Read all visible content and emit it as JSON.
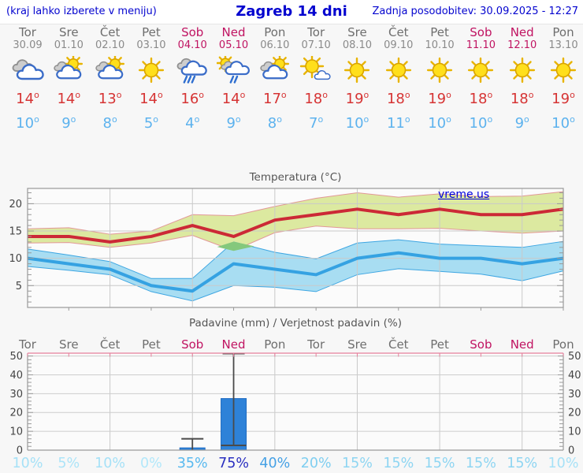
{
  "header": {
    "hint": "(kraj lahko izberete v meniju)",
    "title": "Zagreb 14 dni",
    "updated": "Zadnja posodobitev: 30.09.2025 - 12:27"
  },
  "colors": {
    "weekday": "#6e6e6e",
    "weekend": "#c01462",
    "date": "#8a8a8a",
    "high_temp": "#d63434",
    "low_temp": "#5cb2ee",
    "header_blue": "#0404cf",
    "bar_blue": "#2e82d8",
    "red_line": "#cc2936",
    "blue_line": "#35a2e2",
    "green_band": "#dce9a0",
    "blue_band": "#a8ddf2",
    "overlap_green": "#84c87c"
  },
  "forecast": {
    "degree_symbol": "o",
    "days": [
      {
        "name": "Tor",
        "date": "30.09",
        "weekend": false,
        "icon": "cloudy",
        "high": 14,
        "low": 10,
        "prob": 10,
        "prob_label": "10%",
        "prob_color": "#a6e1f7"
      },
      {
        "name": "Sre",
        "date": "01.10",
        "weekend": false,
        "icon": "partly-cloudy",
        "high": 14,
        "low": 9,
        "prob": 5,
        "prob_label": "5%",
        "prob_color": "#ace4f8"
      },
      {
        "name": "Čet",
        "date": "02.10",
        "weekend": false,
        "icon": "partly-cloudy",
        "high": 13,
        "low": 8,
        "prob": 10,
        "prob_label": "10%",
        "prob_color": "#a6e1f7"
      },
      {
        "name": "Pet",
        "date": "03.10",
        "weekend": false,
        "icon": "sunny",
        "high": 14,
        "low": 5,
        "prob": 0,
        "prob_label": "0%",
        "prob_color": "#b2e7fa"
      },
      {
        "name": "Sob",
        "date": "04.10",
        "weekend": true,
        "icon": "rain",
        "high": 16,
        "low": 4,
        "prob": 35,
        "prob_label": "35%",
        "prob_color": "#58b9ef"
      },
      {
        "name": "Ned",
        "date": "05.10",
        "weekend": true,
        "icon": "sun-rain",
        "high": 14,
        "low": 9,
        "prob": 75,
        "prob_label": "75%",
        "prob_color": "#2a2fc0"
      },
      {
        "name": "Pon",
        "date": "06.10",
        "weekend": false,
        "icon": "partly-cloudy",
        "high": 17,
        "low": 8,
        "prob": 40,
        "prob_label": "40%",
        "prob_color": "#46a1e5"
      },
      {
        "name": "Tor",
        "date": "07.10",
        "weekend": false,
        "icon": "mostly-sunny",
        "high": 18,
        "low": 7,
        "prob": 20,
        "prob_label": "20%",
        "prob_color": "#7fcef0"
      },
      {
        "name": "Sre",
        "date": "08.10",
        "weekend": false,
        "icon": "sunny",
        "high": 19,
        "low": 10,
        "prob": 15,
        "prob_label": "15%",
        "prob_color": "#8ed5f2"
      },
      {
        "name": "Čet",
        "date": "09.10",
        "weekend": false,
        "icon": "sunny",
        "high": 18,
        "low": 11,
        "prob": 15,
        "prob_label": "15%",
        "prob_color": "#8ed5f2"
      },
      {
        "name": "Pet",
        "date": "10.10",
        "weekend": false,
        "icon": "sunny",
        "high": 19,
        "low": 10,
        "prob": 15,
        "prob_label": "15%",
        "prob_color": "#8ed5f2"
      },
      {
        "name": "Sob",
        "date": "11.10",
        "weekend": true,
        "icon": "sunny",
        "high": 18,
        "low": 10,
        "prob": 15,
        "prob_label": "15%",
        "prob_color": "#8ed5f2"
      },
      {
        "name": "Ned",
        "date": "12.10",
        "weekend": true,
        "icon": "sunny",
        "high": 18,
        "low": 9,
        "prob": 15,
        "prob_label": "15%",
        "prob_color": "#8ed5f2"
      },
      {
        "name": "Pon",
        "date": "13.10",
        "weekend": false,
        "icon": "sunny",
        "high": 19,
        "low": 10,
        "prob": 10,
        "prob_label": "10%",
        "prob_color": "#a6e1f7"
      }
    ]
  },
  "chart_data": [
    {
      "type": "line",
      "title": "Temperatura (°C)",
      "watermark": "vreme.us",
      "categories": [
        "Tor 30.09",
        "Sre 01.10",
        "Čet 02.10",
        "Pet 03.10",
        "Sob 04.10",
        "Ned 05.10",
        "Pon 06.10",
        "Tor 07.10",
        "Sre 08.10",
        "Čet 09.10",
        "Pet 10.10",
        "Sob 11.10",
        "Ned 12.10",
        "Pon 13.10"
      ],
      "ylim": [
        1,
        22.8
      ],
      "yticks": [
        5,
        10,
        15,
        20
      ],
      "grid": true,
      "series": [
        {
          "name": "max-temp",
          "color": "#cc2936",
          "values": [
            14,
            14,
            13,
            14,
            16,
            14,
            17,
            18,
            19,
            18,
            19,
            18,
            18,
            19
          ]
        },
        {
          "name": "min-temp",
          "color": "#35a2e2",
          "values": [
            10,
            9,
            8,
            5,
            4,
            9,
            8,
            7,
            10,
            11,
            10,
            10,
            9,
            10
          ]
        }
      ],
      "bands": [
        {
          "name": "max-temp-range",
          "fill": "#dce9a0",
          "edge": "#e29898",
          "upper": [
            15.4,
            15.6,
            14.4,
            15.0,
            18.0,
            17.8,
            19.5,
            21.0,
            22.0,
            21.2,
            21.8,
            21.3,
            21.4,
            22.2
          ],
          "lower": [
            12.8,
            12.9,
            12.0,
            12.8,
            14.2,
            11.4,
            14.7,
            15.9,
            15.4,
            15.4,
            15.5,
            15.0,
            14.6,
            15.0
          ]
        },
        {
          "name": "min-temp-range",
          "fill": "#a8ddf2",
          "edge": "#3ea6e2",
          "upper": [
            11.7,
            10.6,
            9.4,
            6.3,
            6.3,
            13.0,
            11.1,
            9.9,
            12.8,
            13.4,
            12.6,
            12.3,
            12.0,
            13.1
          ],
          "lower": [
            8.5,
            7.8,
            7.0,
            3.9,
            2.2,
            5.0,
            4.7,
            3.9,
            7.0,
            8.1,
            7.6,
            7.1,
            5.9,
            7.7
          ]
        }
      ],
      "overlap": {
        "fill": "#84c87c",
        "points": [
          [
            4.6,
            12.1
          ],
          [
            5,
            13.05
          ],
          [
            5.5,
            12.2
          ],
          [
            5,
            11.35
          ]
        ]
      }
    },
    {
      "type": "bar",
      "title": "Padavine (mm) / Verjetnost padavin (%)",
      "categories": [
        "Tor",
        "Sre",
        "Čet",
        "Pet",
        "Sob",
        "Ned",
        "Pon",
        "Tor",
        "Sre",
        "Čet",
        "Pet",
        "Sob",
        "Ned",
        "Pon"
      ],
      "ylim": [
        0,
        51.5
      ],
      "yticks": [
        0,
        10,
        20,
        30,
        40,
        50
      ],
      "values_mm": [
        0,
        0,
        0,
        0,
        1.2,
        27.4,
        0,
        0,
        0,
        0,
        0,
        0,
        0,
        0
      ],
      "bars": [
        {
          "index": 4,
          "mm": 1.2,
          "whisker_lo": 0,
          "whisker_hi": 6,
          "cap_at": null
        },
        {
          "index": 5,
          "mm": 27.4,
          "whisker_lo": 2.5,
          "whisker_hi": 52,
          "cap_at": 2.5
        }
      ],
      "probabilities": [
        10,
        5,
        10,
        0,
        35,
        75,
        40,
        20,
        15,
        15,
        15,
        15,
        15,
        10
      ]
    }
  ]
}
